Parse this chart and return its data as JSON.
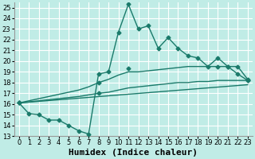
{
  "xlabel": "Humidex (Indice chaleur)",
  "background_color": "#c0ece6",
  "grid_color": "#ffffff",
  "line_color": "#1a7a6a",
  "xlim": [
    -0.5,
    23.5
  ],
  "ylim": [
    13,
    25.5
  ],
  "xticks": [
    0,
    1,
    2,
    3,
    4,
    5,
    6,
    7,
    8,
    9,
    10,
    11,
    12,
    13,
    14,
    15,
    16,
    17,
    18,
    19,
    20,
    21,
    22,
    23
  ],
  "yticks": [
    13,
    14,
    15,
    16,
    17,
    18,
    19,
    20,
    21,
    22,
    23,
    24,
    25
  ],
  "series": [
    {
      "x": [
        0,
        1,
        2,
        3,
        4,
        5,
        6,
        7,
        8,
        9,
        10,
        11,
        12,
        13,
        14,
        15,
        16,
        17,
        18,
        19,
        20,
        21,
        22,
        23
      ],
      "y": [
        16.1,
        15.1,
        15.0,
        14.5,
        14.5,
        14.0,
        13.5,
        13.2,
        18.8,
        19.0,
        22.7,
        25.3,
        23.0,
        23.3,
        21.2,
        22.2,
        21.2,
        20.5,
        20.3,
        19.5,
        20.3,
        19.5,
        18.8,
        18.2
      ],
      "has_markers": true
    },
    {
      "x": [
        0,
        8,
        11,
        20,
        21,
        22,
        23
      ],
      "y": [
        16.1,
        18.0,
        19.3,
        19.5,
        19.5,
        19.5,
        18.3
      ],
      "has_markers": true,
      "interpolate": true,
      "full_x": [
        0,
        1,
        2,
        3,
        4,
        5,
        6,
        7,
        8,
        9,
        10,
        11,
        12,
        13,
        14,
        15,
        16,
        17,
        18,
        19,
        20,
        21,
        22,
        23
      ],
      "full_y": [
        16.1,
        16.3,
        16.5,
        16.7,
        16.9,
        17.1,
        17.3,
        17.6,
        18.0,
        18.3,
        18.7,
        19.0,
        19.0,
        19.1,
        19.2,
        19.3,
        19.4,
        19.5,
        19.5,
        19.5,
        19.5,
        19.5,
        19.5,
        18.3
      ]
    },
    {
      "x": [
        0,
        8,
        23
      ],
      "y": [
        16.1,
        17.0,
        18.2
      ],
      "has_markers": true,
      "interpolate": true,
      "full_x": [
        0,
        1,
        2,
        3,
        4,
        5,
        6,
        7,
        8,
        9,
        10,
        11,
        12,
        13,
        14,
        15,
        16,
        17,
        18,
        19,
        20,
        21,
        22,
        23
      ],
      "full_y": [
        16.1,
        16.2,
        16.3,
        16.4,
        16.5,
        16.6,
        16.7,
        16.85,
        17.0,
        17.1,
        17.3,
        17.5,
        17.6,
        17.7,
        17.8,
        17.9,
        18.0,
        18.0,
        18.1,
        18.1,
        18.2,
        18.2,
        18.2,
        18.2
      ]
    },
    {
      "x": [
        0,
        23
      ],
      "y": [
        16.1,
        17.8
      ],
      "has_markers": false
    }
  ],
  "marker": "D",
  "markersize": 2.5,
  "linewidth": 1.0,
  "xlabel_fontsize": 8,
  "tick_fontsize": 6
}
